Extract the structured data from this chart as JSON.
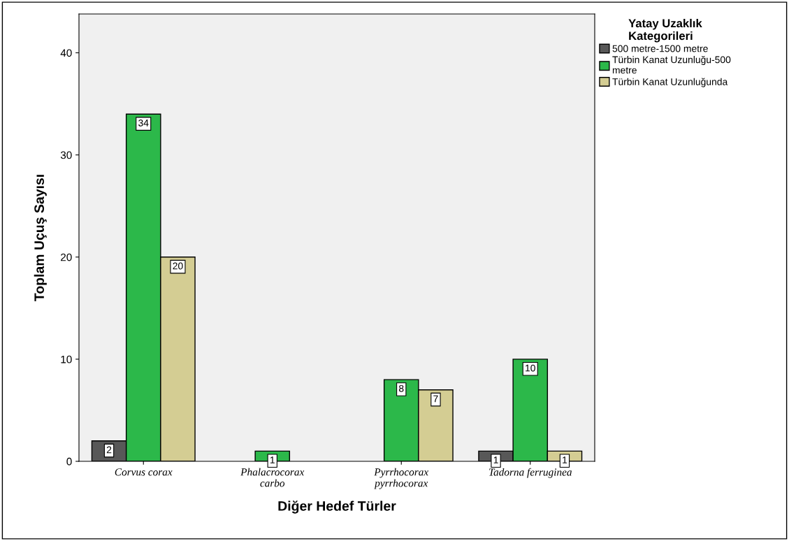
{
  "chart_data": {
    "type": "bar",
    "xlabel": "Diğer Hedef Türler",
    "ylabel": "Toplam Uçuş Sayısı",
    "legend_title": "Yatay Uzaklık\nKategorileri",
    "categories": [
      "Corvus corax",
      "Phalacrocorax\ncarbo",
      "Pyrrhocorax\npyrrhocorax",
      "Tadorna ferruginea"
    ],
    "series": [
      {
        "name": "500 metre-1500 metre",
        "color": "#585858",
        "values": [
          2,
          null,
          null,
          1
        ]
      },
      {
        "name": "Türbin Kanat Uzunluğu-500\nmetre",
        "color": "#2cb84a",
        "values": [
          34,
          1,
          8,
          10
        ]
      },
      {
        "name": "Türbin Kanat Uzunluğunda",
        "color": "#d4cd93",
        "values": [
          20,
          null,
          7,
          1
        ]
      }
    ],
    "ylim": [
      0,
      43.8
    ],
    "yticks": [
      0,
      10,
      20,
      30,
      40
    ],
    "data_labels": true,
    "grid": false,
    "legend": "top right"
  }
}
